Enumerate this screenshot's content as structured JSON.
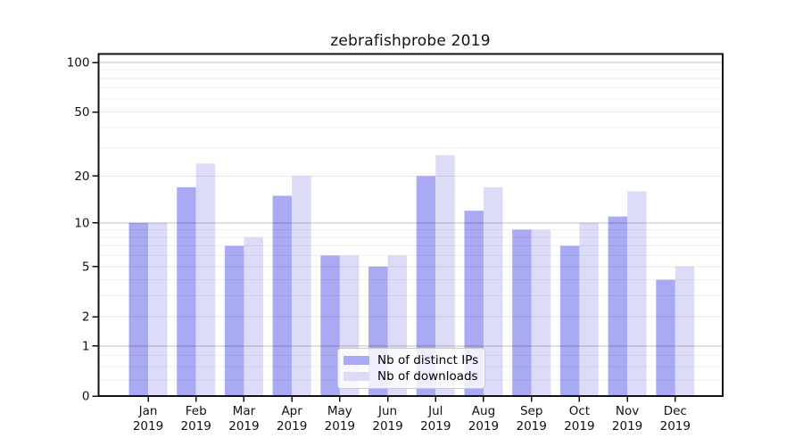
{
  "chart_data": {
    "type": "bar",
    "title": "zebrafishprobe 2019",
    "categories": [
      "Jan",
      "Feb",
      "Mar",
      "Apr",
      "May",
      "Jun",
      "Jul",
      "Aug",
      "Sep",
      "Oct",
      "Nov",
      "Dec"
    ],
    "category_year": "2019",
    "series": [
      {
        "name": "Nb of distinct IPs",
        "color": "#a9a9f4",
        "values": [
          10,
          17,
          7,
          15,
          6,
          5,
          20,
          12,
          9,
          7,
          11,
          4
        ]
      },
      {
        "name": "Nb of downloads",
        "color": "#dcdcf9",
        "values": [
          10,
          24,
          8,
          20,
          6,
          6,
          27,
          17,
          9,
          10,
          16,
          5
        ]
      }
    ],
    "yscale": "log1p",
    "ylim": [
      0,
      100
    ],
    "yticks": [
      0,
      1,
      2,
      5,
      10,
      20,
      50,
      100
    ],
    "grid": {
      "major": [
        1,
        10,
        100
      ],
      "minor": [
        2,
        5,
        20,
        50
      ],
      "subminor": [
        0.25,
        0.5,
        0.75,
        3,
        4,
        6,
        7,
        8,
        9,
        30,
        40,
        60,
        70,
        80,
        90
      ]
    },
    "legend_position": "inside-bottom-center",
    "xlabel": "",
    "ylabel": ""
  }
}
